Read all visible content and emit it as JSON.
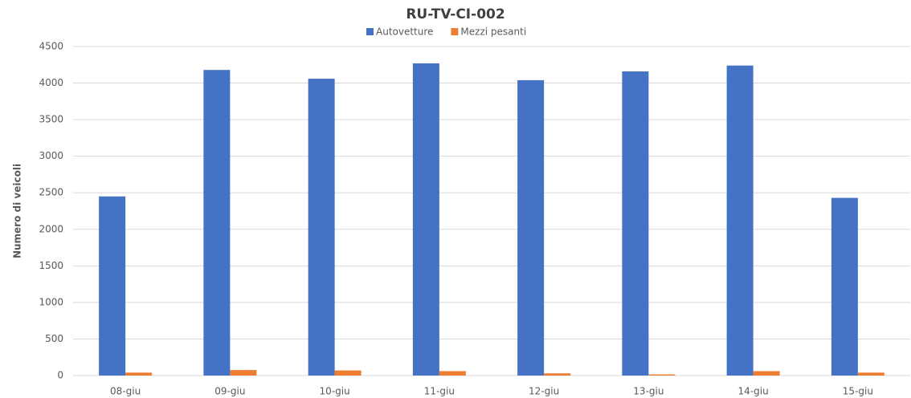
{
  "chart_data": {
    "type": "bar",
    "title": "RU-TV-CI-002",
    "y_label": "Numero di veicoli",
    "categories": [
      "08-giu",
      "09-giu",
      "10-giu",
      "11-giu",
      "12-giu",
      "13-giu",
      "14-giu",
      "15-giu"
    ],
    "series": [
      {
        "name": "Autovetture",
        "color": "#4472c4",
        "values": [
          2450,
          4180,
          4060,
          4270,
          4040,
          4160,
          4240,
          2430
        ]
      },
      {
        "name": "Mezzi pesanti",
        "color": "#ed7d31",
        "values": [
          40,
          75,
          70,
          60,
          30,
          15,
          60,
          40
        ]
      }
    ],
    "ylim": [
      0,
      4500
    ],
    "yticks": [
      0,
      500,
      1000,
      1500,
      2000,
      2500,
      3000,
      3500,
      4000,
      4500
    ],
    "grid": true,
    "legend": "top"
  }
}
